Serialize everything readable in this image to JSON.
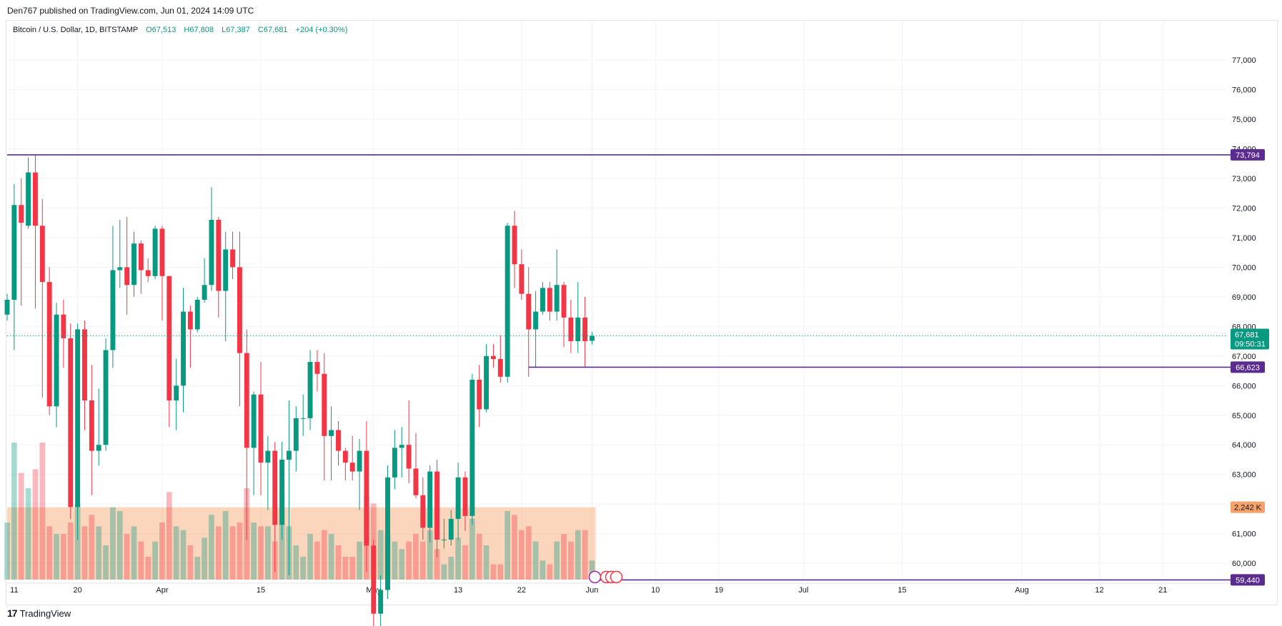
{
  "publisher": "Den767 published on TradingView.com, Jun 01, 2024 14:09 UTC",
  "legend": {
    "symbol": "Bitcoin / U.S. Dollar, 1D, BITSTAMP",
    "open_label": "O",
    "open": "67,513",
    "high_label": "H",
    "high": "67,808",
    "low_label": "L",
    "low": "67,387",
    "close_label": "C",
    "close": "67,681",
    "change": "+204 (+0.30%)"
  },
  "footer": {
    "logo_mark": "17",
    "brand": "TradingView"
  },
  "colors": {
    "up": "#089981",
    "down": "#f23645",
    "level_line": "#5b2c8f",
    "volume_ma": "#f7a26b",
    "grid": "#f0f3fa"
  },
  "chart_data": {
    "type": "candlestick",
    "symbol": "Bitcoin / U.S. Dollar",
    "interval": "1D",
    "exchange": "BITSTAMP",
    "y_ticks": [
      60000,
      61000,
      62000,
      63000,
      64000,
      65000,
      66000,
      67000,
      68000,
      69000,
      70000,
      71000,
      72000,
      73000,
      74000,
      75000,
      76000,
      77000
    ],
    "y_tick_labels": [
      "60,000",
      "61,000",
      "62,000",
      "63,000",
      "64,000",
      "65,000",
      "66,000",
      "67,000",
      "68,000",
      "69,000",
      "70,000",
      "71,000",
      "72,000",
      "73,000",
      "74,000",
      "75,000",
      "76,000",
      "77,000"
    ],
    "ylim": [
      59450,
      78300
    ],
    "x_tick_labels": [
      {
        "label": "11",
        "date": "2024-03-11"
      },
      {
        "label": "20",
        "date": "2024-03-20"
      },
      {
        "label": "Apr",
        "date": "2024-04-01"
      },
      {
        "label": "15",
        "date": "2024-04-15"
      },
      {
        "label": "May",
        "date": "2024-05-01"
      },
      {
        "label": "13",
        "date": "2024-05-13"
      },
      {
        "label": "22",
        "date": "2024-05-22"
      },
      {
        "label": "Jun",
        "date": "2024-06-01"
      },
      {
        "label": "10",
        "date": "2024-06-10"
      },
      {
        "label": "19",
        "date": "2024-06-19"
      },
      {
        "label": "Jul",
        "date": "2024-07-01"
      },
      {
        "label": "15",
        "date": "2024-07-15"
      },
      {
        "label": "Aug",
        "date": "2024-08-01"
      },
      {
        "label": "12",
        "date": "2024-08-12"
      },
      {
        "label": "21",
        "date": "2024-08-21"
      }
    ],
    "xlim": [
      "2024-03-10",
      "2024-08-30"
    ],
    "candles": [
      {
        "date": "2024-03-10",
        "o": 68400,
        "h": 69100,
        "l": 68200,
        "c": 68900
      },
      {
        "date": "2024-03-11",
        "o": 68900,
        "h": 72800,
        "l": 67200,
        "c": 72100
      },
      {
        "date": "2024-03-12",
        "o": 72100,
        "h": 73000,
        "l": 68700,
        "c": 71500
      },
      {
        "date": "2024-03-13",
        "o": 71400,
        "h": 73700,
        "l": 71300,
        "c": 73200
      },
      {
        "date": "2024-03-14",
        "o": 73200,
        "h": 73794,
        "l": 68600,
        "c": 71400
      },
      {
        "date": "2024-03-15",
        "o": 71400,
        "h": 72300,
        "l": 65600,
        "c": 69500
      },
      {
        "date": "2024-03-16",
        "o": 69500,
        "h": 70000,
        "l": 65000,
        "c": 65300
      },
      {
        "date": "2024-03-17",
        "o": 65300,
        "h": 68800,
        "l": 64600,
        "c": 68400
      },
      {
        "date": "2024-03-18",
        "o": 68400,
        "h": 68900,
        "l": 66600,
        "c": 67600
      },
      {
        "date": "2024-03-19",
        "o": 67600,
        "h": 68100,
        "l": 61500,
        "c": 61900
      },
      {
        "date": "2024-03-20",
        "o": 61900,
        "h": 68100,
        "l": 60800,
        "c": 67900
      },
      {
        "date": "2024-03-21",
        "o": 67900,
        "h": 68200,
        "l": 64500,
        "c": 65500
      },
      {
        "date": "2024-03-22",
        "o": 65500,
        "h": 66700,
        "l": 62300,
        "c": 63800
      },
      {
        "date": "2024-03-23",
        "o": 63800,
        "h": 65900,
        "l": 63300,
        "c": 64000
      },
      {
        "date": "2024-03-24",
        "o": 64000,
        "h": 67600,
        "l": 63800,
        "c": 67200
      },
      {
        "date": "2024-03-25",
        "o": 67200,
        "h": 71400,
        "l": 66600,
        "c": 69900
      },
      {
        "date": "2024-03-26",
        "o": 69900,
        "h": 71600,
        "l": 69300,
        "c": 70000
      },
      {
        "date": "2024-03-27",
        "o": 70000,
        "h": 71700,
        "l": 68400,
        "c": 69400
      },
      {
        "date": "2024-03-28",
        "o": 69400,
        "h": 71200,
        "l": 69000,
        "c": 70800
      },
      {
        "date": "2024-03-29",
        "o": 70800,
        "h": 70900,
        "l": 69100,
        "c": 69900
      },
      {
        "date": "2024-03-30",
        "o": 69900,
        "h": 70300,
        "l": 69500,
        "c": 69700
      },
      {
        "date": "2024-03-31",
        "o": 69700,
        "h": 71400,
        "l": 69600,
        "c": 71300
      },
      {
        "date": "2024-04-01",
        "o": 71300,
        "h": 71400,
        "l": 68200,
        "c": 69700
      },
      {
        "date": "2024-04-02",
        "o": 69700,
        "h": 69700,
        "l": 64600,
        "c": 65500
      },
      {
        "date": "2024-04-03",
        "o": 65500,
        "h": 66900,
        "l": 64500,
        "c": 66000
      },
      {
        "date": "2024-04-04",
        "o": 66000,
        "h": 69300,
        "l": 65100,
        "c": 68500
      },
      {
        "date": "2024-04-05",
        "o": 68500,
        "h": 68700,
        "l": 66600,
        "c": 67900
      },
      {
        "date": "2024-04-06",
        "o": 67900,
        "h": 69000,
        "l": 67800,
        "c": 68900
      },
      {
        "date": "2024-04-07",
        "o": 68900,
        "h": 70300,
        "l": 68800,
        "c": 69400
      },
      {
        "date": "2024-04-08",
        "o": 69400,
        "h": 72700,
        "l": 69200,
        "c": 71600
      },
      {
        "date": "2024-04-09",
        "o": 71600,
        "h": 71700,
        "l": 68300,
        "c": 69200
      },
      {
        "date": "2024-04-10",
        "o": 69200,
        "h": 71200,
        "l": 67500,
        "c": 70600
      },
      {
        "date": "2024-04-11",
        "o": 70600,
        "h": 71200,
        "l": 69600,
        "c": 70000
      },
      {
        "date": "2024-04-12",
        "o": 70000,
        "h": 71200,
        "l": 65300,
        "c": 67100
      },
      {
        "date": "2024-04-13",
        "o": 67100,
        "h": 67900,
        "l": 60800,
        "c": 63900
      },
      {
        "date": "2024-04-14",
        "o": 63900,
        "h": 65800,
        "l": 62300,
        "c": 65700
      },
      {
        "date": "2024-04-15",
        "o": 65700,
        "h": 66800,
        "l": 62300,
        "c": 63400
      },
      {
        "date": "2024-04-16",
        "o": 63400,
        "h": 64300,
        "l": 61800,
        "c": 63800
      },
      {
        "date": "2024-04-17",
        "o": 63800,
        "h": 64100,
        "l": 59700,
        "c": 61300
      },
      {
        "date": "2024-04-18",
        "o": 61300,
        "h": 64100,
        "l": 60800,
        "c": 63500
      },
      {
        "date": "2024-04-19",
        "o": 63500,
        "h": 65500,
        "l": 59600,
        "c": 63800
      },
      {
        "date": "2024-04-20",
        "o": 63800,
        "h": 65300,
        "l": 63100,
        "c": 64900
      },
      {
        "date": "2024-04-21",
        "o": 64900,
        "h": 65700,
        "l": 64300,
        "c": 64900
      },
      {
        "date": "2024-04-22",
        "o": 64900,
        "h": 67200,
        "l": 64500,
        "c": 66800
      },
      {
        "date": "2024-04-23",
        "o": 66800,
        "h": 67200,
        "l": 65800,
        "c": 66400
      },
      {
        "date": "2024-04-24",
        "o": 66400,
        "h": 67100,
        "l": 62800,
        "c": 64300
      },
      {
        "date": "2024-04-25",
        "o": 64300,
        "h": 65300,
        "l": 62800,
        "c": 64500
      },
      {
        "date": "2024-04-26",
        "o": 64500,
        "h": 64800,
        "l": 63300,
        "c": 63800
      },
      {
        "date": "2024-04-27",
        "o": 63800,
        "h": 63900,
        "l": 62800,
        "c": 63400
      },
      {
        "date": "2024-04-28",
        "o": 63400,
        "h": 64300,
        "l": 62800,
        "c": 63100
      },
      {
        "date": "2024-04-29",
        "o": 63100,
        "h": 64200,
        "l": 61800,
        "c": 63800
      },
      {
        "date": "2024-04-30",
        "o": 63800,
        "h": 64800,
        "l": 59700,
        "c": 60600
      },
      {
        "date": "2024-05-01",
        "o": 60600,
        "h": 60800,
        "l": 56600,
        "c": 58300
      },
      {
        "date": "2024-05-02",
        "o": 58300,
        "h": 59600,
        "l": 56900,
        "c": 59100
      },
      {
        "date": "2024-05-03",
        "o": 59100,
        "h": 63300,
        "l": 58800,
        "c": 62900
      },
      {
        "date": "2024-05-04",
        "o": 62900,
        "h": 64500,
        "l": 62500,
        "c": 63900
      },
      {
        "date": "2024-05-05",
        "o": 63900,
        "h": 64600,
        "l": 62900,
        "c": 64000
      },
      {
        "date": "2024-05-06",
        "o": 64000,
        "h": 65500,
        "l": 62700,
        "c": 63200
      },
      {
        "date": "2024-05-07",
        "o": 63200,
        "h": 64400,
        "l": 62200,
        "c": 62300
      },
      {
        "date": "2024-05-08",
        "o": 62300,
        "h": 62900,
        "l": 60800,
        "c": 61200
      },
      {
        "date": "2024-05-09",
        "o": 61200,
        "h": 63300,
        "l": 60700,
        "c": 63100
      },
      {
        "date": "2024-05-10",
        "o": 63100,
        "h": 63500,
        "l": 60200,
        "c": 60800
      },
      {
        "date": "2024-05-11",
        "o": 60800,
        "h": 61500,
        "l": 60500,
        "c": 60800
      },
      {
        "date": "2024-05-12",
        "o": 60800,
        "h": 61800,
        "l": 60600,
        "c": 61500
      },
      {
        "date": "2024-05-13",
        "o": 61500,
        "h": 63400,
        "l": 60800,
        "c": 62900
      },
      {
        "date": "2024-05-14",
        "o": 62900,
        "h": 63100,
        "l": 61100,
        "c": 61600
      },
      {
        "date": "2024-05-15",
        "o": 61600,
        "h": 66400,
        "l": 61300,
        "c": 66200
      },
      {
        "date": "2024-05-16",
        "o": 66200,
        "h": 66700,
        "l": 64600,
        "c": 65200
      },
      {
        "date": "2024-05-17",
        "o": 65200,
        "h": 67400,
        "l": 65100,
        "c": 67000
      },
      {
        "date": "2024-05-18",
        "o": 67000,
        "h": 67400,
        "l": 66600,
        "c": 66900
      },
      {
        "date": "2024-05-19",
        "o": 66900,
        "h": 67700,
        "l": 66100,
        "c": 66300
      },
      {
        "date": "2024-05-20",
        "o": 66300,
        "h": 71500,
        "l": 66100,
        "c": 71400
      },
      {
        "date": "2024-05-21",
        "o": 71400,
        "h": 71900,
        "l": 69300,
        "c": 70100
      },
      {
        "date": "2024-05-22",
        "o": 70100,
        "h": 70600,
        "l": 68900,
        "c": 69100
      },
      {
        "date": "2024-05-23",
        "o": 69100,
        "h": 70000,
        "l": 66300,
        "c": 67900
      },
      {
        "date": "2024-05-24",
        "o": 67900,
        "h": 69200,
        "l": 66600,
        "c": 68500
      },
      {
        "date": "2024-05-25",
        "o": 68500,
        "h": 69500,
        "l": 68400,
        "c": 69300
      },
      {
        "date": "2024-05-26",
        "o": 69300,
        "h": 69500,
        "l": 68200,
        "c": 68500
      },
      {
        "date": "2024-05-27",
        "o": 68500,
        "h": 70600,
        "l": 68200,
        "c": 69400
      },
      {
        "date": "2024-05-28",
        "o": 69400,
        "h": 69500,
        "l": 67300,
        "c": 68300
      },
      {
        "date": "2024-05-29",
        "o": 68300,
        "h": 68900,
        "l": 67100,
        "c": 67500
      },
      {
        "date": "2024-05-30",
        "o": 67500,
        "h": 69500,
        "l": 67100,
        "c": 68300
      },
      {
        "date": "2024-05-31",
        "o": 68300,
        "h": 69000,
        "l": 66623,
        "c": 67500
      },
      {
        "date": "2024-06-01",
        "o": 67513,
        "h": 67808,
        "l": 67387,
        "c": 67681
      }
    ],
    "volume_max_visible": 3.6,
    "volume_unit": "K",
    "volume": [
      1.5,
      3.6,
      2.8,
      2.4,
      2.9,
      3.6,
      1.4,
      1.2,
      1.2,
      1.5,
      2.0,
      1.4,
      1.7,
      1.4,
      0.9,
      1.9,
      1.8,
      1.2,
      1.4,
      1.0,
      0.6,
      1.0,
      1.5,
      2.3,
      1.4,
      1.3,
      0.9,
      0.6,
      1.1,
      1.7,
      1.4,
      1.8,
      1.4,
      1.5,
      2.4,
      1.5,
      1.4,
      1.4,
      1.0,
      2.3,
      1.4,
      0.9,
      0.6,
      1.2,
      1.0,
      1.3,
      1.2,
      0.9,
      0.6,
      0.6,
      1.0,
      2.2,
      2.0,
      1.3,
      1.2,
      1.0,
      0.8,
      1.0,
      1.2,
      1.0,
      1.3,
      0.8,
      0.4,
      0.6,
      1.1,
      0.9,
      1.6,
      1.2,
      0.9,
      0.4,
      0.4,
      1.8,
      1.7,
      1.3,
      1.4,
      1.0,
      0.5,
      0.4,
      1.0,
      1.2,
      1.0,
      1.3,
      1.3,
      0.5
    ],
    "volume_ma_level": 1.9,
    "volume_ma_label": "2.242 K",
    "levels": [
      {
        "value": 73794,
        "label": "73,794",
        "from": "2024-03-10"
      },
      {
        "value": 66623,
        "label": "66,623",
        "from": "2024-05-23"
      },
      {
        "value": 59440,
        "label": "59,440",
        "from": "2024-06-01"
      }
    ],
    "last_price": {
      "value": 67681,
      "label": "67,681",
      "countdown": "09:50:31"
    },
    "grid": true,
    "price_axis": "right"
  }
}
